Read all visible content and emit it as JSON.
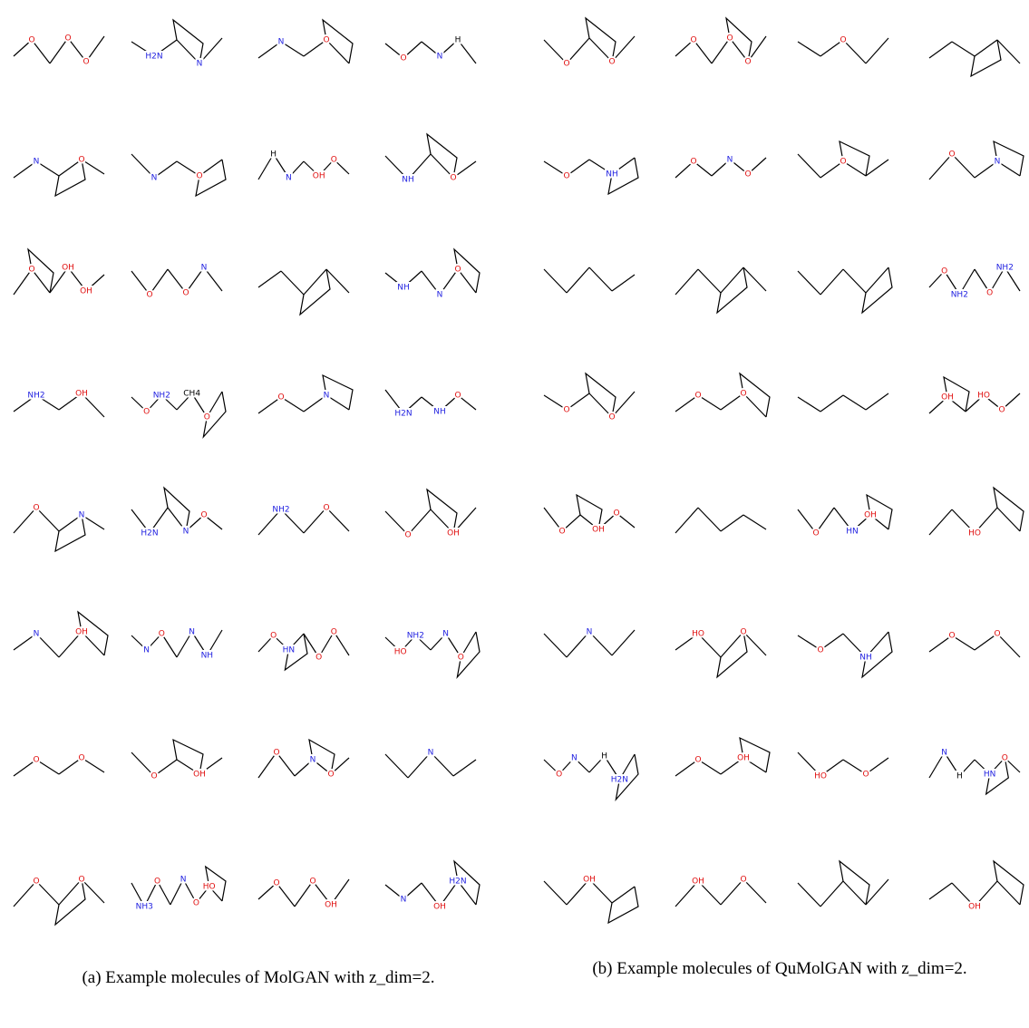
{
  "panels": [
    {
      "caption": "(a) Example molecules of MolGAN with z_dim=2.",
      "molecules": [
        {
          "atoms": [
            "O",
            "O",
            "O"
          ]
        },
        {
          "atoms": [
            "H2N",
            "N"
          ]
        },
        {
          "atoms": [
            "N",
            "O"
          ]
        },
        {
          "atoms": [
            "O",
            "N",
            "H"
          ]
        },
        {
          "atoms": [
            "N",
            "O"
          ]
        },
        {
          "atoms": [
            "N",
            "O"
          ]
        },
        {
          "atoms": [
            "H",
            "N",
            "OH",
            "O"
          ]
        },
        {
          "atoms": [
            "NH",
            "O"
          ]
        },
        {
          "atoms": [
            "O",
            "OH",
            "OH"
          ]
        },
        {
          "atoms": [
            "O",
            "O",
            "N"
          ]
        },
        {},
        {
          "atoms": [
            "NH",
            "N",
            "O"
          ]
        },
        {
          "atoms": [
            "NH2",
            "OH"
          ]
        },
        {
          "atoms": [
            "O",
            "NH2",
            "CH4",
            "O"
          ]
        },
        {
          "atoms": [
            "O",
            "N"
          ]
        },
        {
          "atoms": [
            "H2N",
            "NH",
            "O"
          ]
        },
        {
          "atoms": [
            "O",
            "N"
          ]
        },
        {
          "atoms": [
            "H2N",
            "N",
            "O"
          ]
        },
        {
          "atoms": [
            "NH2",
            "O"
          ]
        },
        {
          "atoms": [
            "O",
            "OH"
          ]
        },
        {
          "atoms": [
            "N",
            "OH"
          ]
        },
        {
          "atoms": [
            "N",
            "O",
            "N",
            "NH"
          ]
        },
        {
          "atoms": [
            "O",
            "HN",
            "O",
            "O"
          ]
        },
        {
          "atoms": [
            "HO",
            "NH2",
            "N",
            "O"
          ]
        },
        {
          "atoms": [
            "O",
            "O"
          ]
        },
        {
          "atoms": [
            "O",
            "OH"
          ]
        },
        {
          "atoms": [
            "O",
            "N",
            "O"
          ]
        },
        {
          "atoms": [
            "N"
          ]
        },
        {
          "atoms": [
            "O",
            "O"
          ]
        },
        {
          "atoms": [
            "NH3",
            "O",
            "N",
            "O",
            "HO"
          ]
        },
        {
          "atoms": [
            "O",
            "O",
            "OH"
          ]
        },
        {
          "atoms": [
            "N",
            "OH",
            "H2N"
          ]
        }
      ]
    },
    {
      "caption": "(b) Example molecules of QuMolGAN with z_dim=2.",
      "molecules": [
        {
          "atoms": [
            "O",
            "O"
          ]
        },
        {
          "atoms": [
            "O",
            "O",
            "O"
          ]
        },
        {
          "atoms": [
            "O"
          ]
        },
        {},
        {
          "atoms": [
            "O",
            "NH"
          ]
        },
        {
          "atoms": [
            "O",
            "N",
            "O"
          ]
        },
        {
          "atoms": [
            "O"
          ]
        },
        {
          "atoms": [
            "O",
            "N"
          ]
        },
        {},
        {},
        {},
        {
          "atoms": [
            "O",
            "NH2",
            "O",
            "NH2"
          ]
        },
        {
          "atoms": [
            "O",
            "O"
          ]
        },
        {
          "atoms": [
            "O",
            "O"
          ]
        },
        {},
        {
          "atoms": [
            "OH",
            "HO",
            "O"
          ]
        },
        {
          "atoms": [
            "O",
            "OH",
            "O"
          ]
        },
        {},
        {
          "atoms": [
            "O",
            "HN",
            "OH"
          ]
        },
        {
          "atoms": [
            "HO"
          ]
        },
        {
          "atoms": [
            "N"
          ]
        },
        {
          "atoms": [
            "HO",
            "O"
          ]
        },
        {
          "atoms": [
            "O",
            "NH"
          ]
        },
        {
          "atoms": [
            "O",
            "O"
          ]
        },
        {
          "atoms": [
            "O",
            "N",
            "H",
            "H2N"
          ]
        },
        {
          "atoms": [
            "O",
            "OH"
          ]
        },
        {
          "atoms": [
            "HO",
            "O"
          ]
        },
        {
          "atoms": [
            "N",
            "H",
            "HN",
            "O"
          ]
        },
        {
          "atoms": [
            "OH"
          ]
        },
        {
          "atoms": [
            "OH",
            "O"
          ]
        },
        {},
        {
          "atoms": [
            "OH"
          ]
        }
      ]
    }
  ]
}
